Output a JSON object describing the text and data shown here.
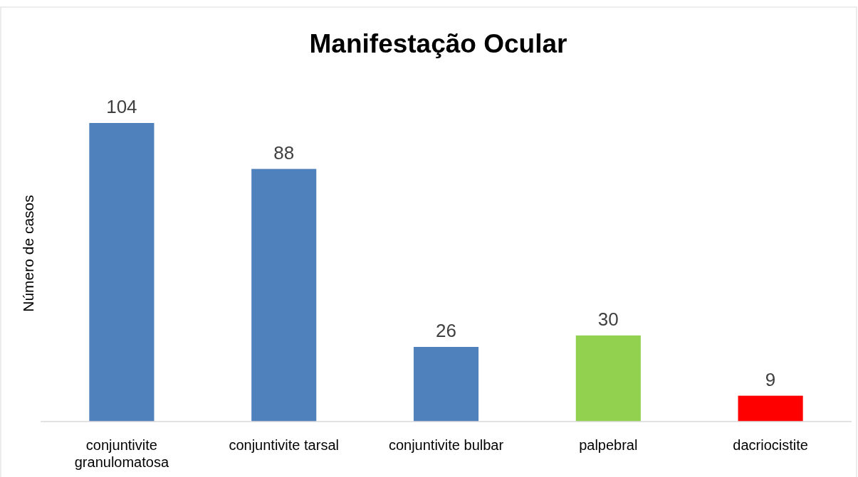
{
  "chart_data": {
    "type": "bar",
    "title": "Manifestação Ocular",
    "ylabel": "Número de casos",
    "categories": [
      "conjuntivite granulomatosa",
      "conjuntivite tarsal",
      "conjuntivite bulbar",
      "palpebral",
      "dacriocistite"
    ],
    "values": [
      104,
      88,
      26,
      30,
      9
    ],
    "colors": [
      "#4f81bd",
      "#4f81bd",
      "#4f81bd",
      "#92d050",
      "#ff0000"
    ],
    "data_labels": true
  }
}
